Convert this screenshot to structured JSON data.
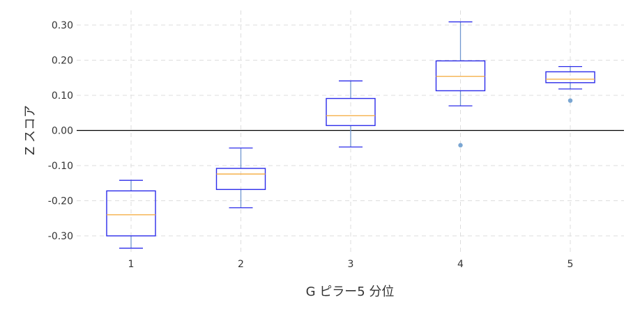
{
  "chart_data": {
    "type": "box",
    "xlabel": "G ピラー5 分位",
    "ylabel": "Z スコア",
    "categories": [
      "1",
      "2",
      "3",
      "4",
      "5"
    ],
    "ylim": [
      -0.35,
      0.33
    ],
    "yticks": [
      0.3,
      0.2,
      0.1,
      0.0,
      -0.1,
      -0.2,
      -0.3
    ],
    "ytick_labels": [
      "0.30",
      "0.20",
      "0.10",
      "0.00",
      "-0.10",
      "-0.20",
      "-0.30"
    ],
    "grid": true,
    "reference_line_y": 0.0,
    "boxes": [
      {
        "category": "1",
        "whisker_low": -0.335,
        "q1": -0.3,
        "median": -0.24,
        "q3": -0.172,
        "whisker_high": -0.142,
        "outliers": []
      },
      {
        "category": "2",
        "whisker_low": -0.22,
        "q1": -0.168,
        "median": -0.124,
        "q3": -0.108,
        "whisker_high": -0.05,
        "outliers": []
      },
      {
        "category": "3",
        "whisker_low": -0.047,
        "q1": 0.014,
        "median": 0.042,
        "q3": 0.091,
        "whisker_high": 0.141,
        "outliers": []
      },
      {
        "category": "4",
        "whisker_low": 0.07,
        "q1": 0.113,
        "median": 0.154,
        "q3": 0.198,
        "whisker_high": 0.309,
        "outliers": [
          -0.042
        ]
      },
      {
        "category": "5",
        "whisker_low": 0.118,
        "q1": 0.136,
        "median": 0.146,
        "q3": 0.167,
        "whisker_high": 0.182,
        "outliers": [
          0.085
        ]
      }
    ],
    "colors": {
      "box_edge": "#2b2bea",
      "median": "#f5b04a",
      "whisker": "#6f96cf",
      "cap": "#2b2bea",
      "outlier": "#7aa6d2",
      "zero_line": "#000000",
      "grid": "#dddddd"
    }
  }
}
